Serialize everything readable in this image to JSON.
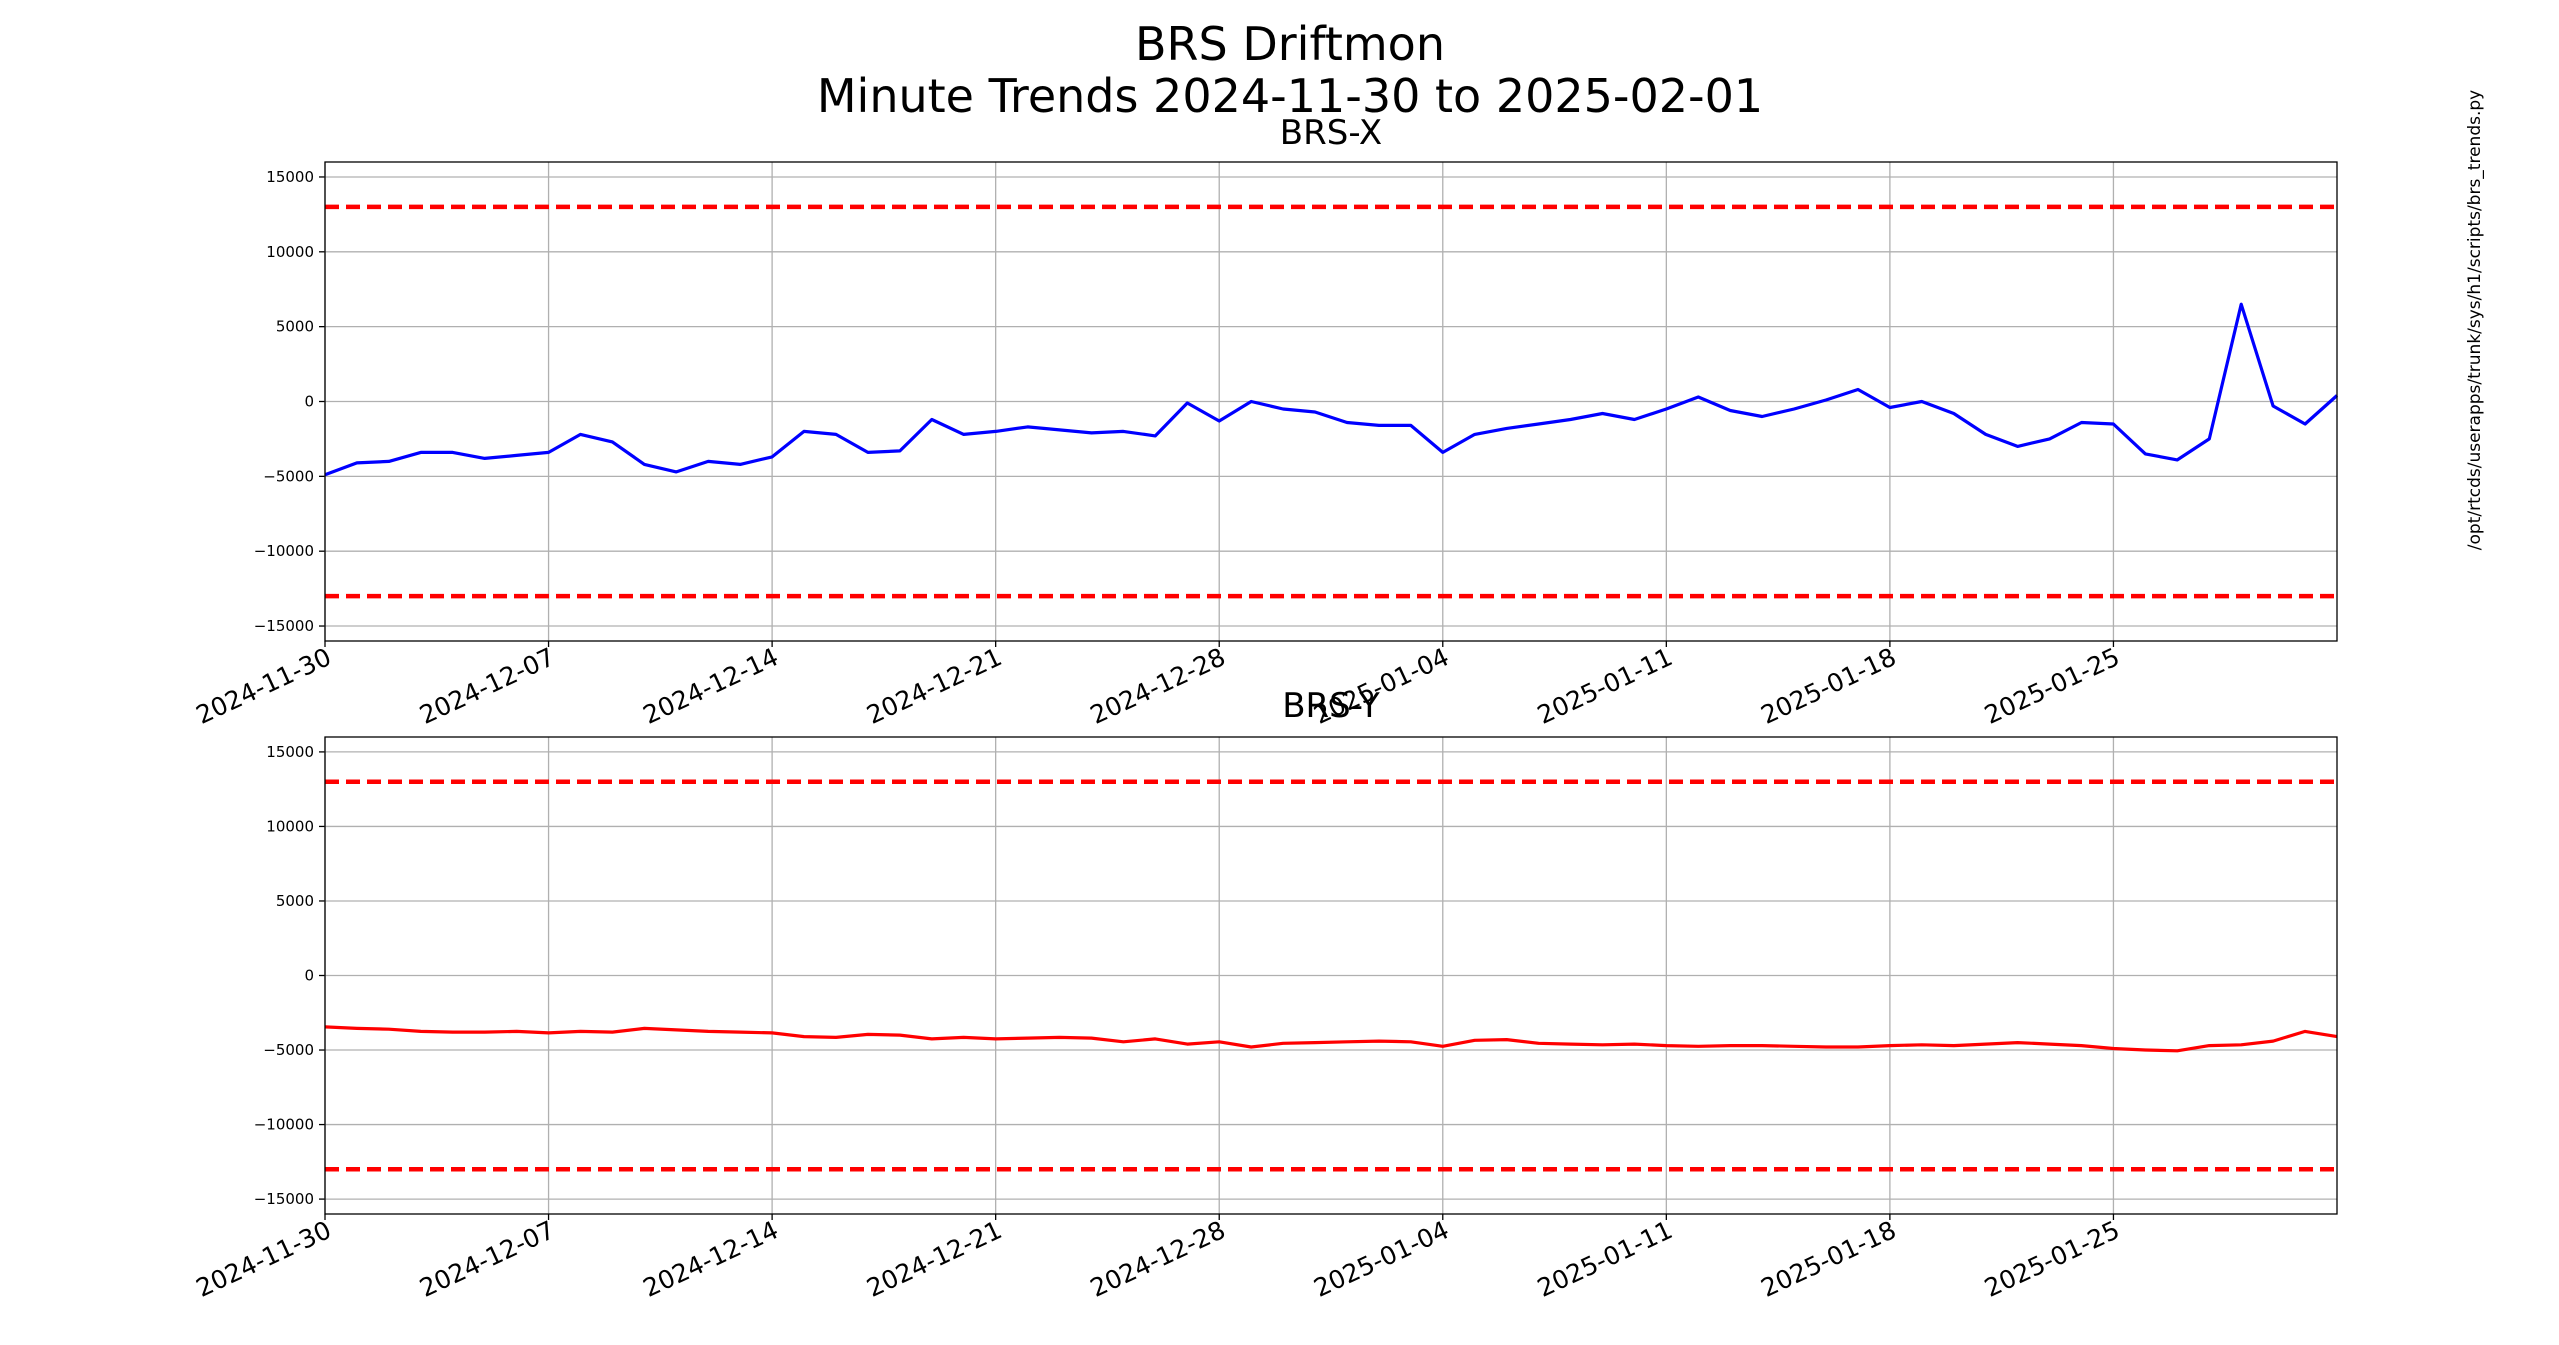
{
  "title": [
    "BRS Driftmon",
    "Minute Trends 2024-11-30  to 2025-02-01"
  ],
  "side_note": "/opt/rtcds/userapps/trunk/sys/h1/scripts/brs_trends.py",
  "chart_data": [
    {
      "type": "line",
      "title": "BRS-X",
      "x": [
        "2024-11-30",
        "2024-12-01",
        "2024-12-02",
        "2024-12-03",
        "2024-12-04",
        "2024-12-05",
        "2024-12-06",
        "2024-12-07",
        "2024-12-08",
        "2024-12-09",
        "2024-12-10",
        "2024-12-11",
        "2024-12-12",
        "2024-12-13",
        "2024-12-14",
        "2024-12-15",
        "2024-12-16",
        "2024-12-17",
        "2024-12-18",
        "2024-12-19",
        "2024-12-20",
        "2024-12-21",
        "2024-12-22",
        "2024-12-23",
        "2024-12-24",
        "2024-12-25",
        "2024-12-26",
        "2024-12-27",
        "2024-12-28",
        "2024-12-29",
        "2024-12-30",
        "2024-12-31",
        "2025-01-01",
        "2025-01-02",
        "2025-01-03",
        "2025-01-04",
        "2025-01-05",
        "2025-01-06",
        "2025-01-07",
        "2025-01-08",
        "2025-01-09",
        "2025-01-10",
        "2025-01-11",
        "2025-01-12",
        "2025-01-13",
        "2025-01-14",
        "2025-01-15",
        "2025-01-16",
        "2025-01-17",
        "2025-01-18",
        "2025-01-19",
        "2025-01-20",
        "2025-01-21",
        "2025-01-22",
        "2025-01-23",
        "2025-01-24",
        "2025-01-25",
        "2025-01-26",
        "2025-01-27",
        "2025-01-28",
        "2025-01-29",
        "2025-01-30",
        "2025-01-31",
        "2025-02-01"
      ],
      "series": [
        {
          "name": "BRS-X",
          "color": "#0000ff",
          "values": [
            -4900,
            -4100,
            -4000,
            -3400,
            -3400,
            -3800,
            -3600,
            -3400,
            -2200,
            -2700,
            -4200,
            -4700,
            -4000,
            -4200,
            -3700,
            -2000,
            -2200,
            -3400,
            -3300,
            -1200,
            -2200,
            -2000,
            -1700,
            -1900,
            -2100,
            -2000,
            -2300,
            -100,
            -1300,
            0,
            -500,
            -700,
            -1400,
            -1600,
            -1600,
            -3400,
            -2200,
            -1800,
            -1500,
            -1200,
            -800,
            -1200,
            -500,
            300,
            -600,
            -1000,
            -500,
            100,
            800,
            -400,
            0,
            -800,
            -2200,
            -3000,
            -2500,
            -1400,
            -1500,
            -3500,
            -3900,
            -2500,
            6500,
            -300,
            -1500,
            400
          ]
        }
      ],
      "hlines": [
        13000,
        -13000
      ],
      "hline_color": "#ff0000",
      "xlim": [
        "2024-11-30",
        "2025-02-01"
      ],
      "xticks": [
        "2024-11-30",
        "2024-12-07",
        "2024-12-14",
        "2024-12-21",
        "2024-12-28",
        "2025-01-04",
        "2025-01-11",
        "2025-01-18",
        "2025-01-25"
      ],
      "ylim": [
        -16000,
        16000
      ],
      "yticks": [
        {
          "value": -15000,
          "label": "−15000"
        },
        {
          "value": -10000,
          "label": "−10000"
        },
        {
          "value": -5000,
          "label": "−5000"
        },
        0,
        5000,
        10000,
        15000
      ],
      "grid": true
    },
    {
      "type": "line",
      "title": "BRS-Y",
      "x": [
        "2024-11-30",
        "2024-12-01",
        "2024-12-02",
        "2024-12-03",
        "2024-12-04",
        "2024-12-05",
        "2024-12-06",
        "2024-12-07",
        "2024-12-08",
        "2024-12-09",
        "2024-12-10",
        "2024-12-11",
        "2024-12-12",
        "2024-12-13",
        "2024-12-14",
        "2024-12-15",
        "2024-12-16",
        "2024-12-17",
        "2024-12-18",
        "2024-12-19",
        "2024-12-20",
        "2024-12-21",
        "2024-12-22",
        "2024-12-23",
        "2024-12-24",
        "2024-12-25",
        "2024-12-26",
        "2024-12-27",
        "2024-12-28",
        "2024-12-29",
        "2024-12-30",
        "2024-12-31",
        "2025-01-01",
        "2025-01-02",
        "2025-01-03",
        "2025-01-04",
        "2025-01-05",
        "2025-01-06",
        "2025-01-07",
        "2025-01-08",
        "2025-01-09",
        "2025-01-10",
        "2025-01-11",
        "2025-01-12",
        "2025-01-13",
        "2025-01-14",
        "2025-01-15",
        "2025-01-16",
        "2025-01-17",
        "2025-01-18",
        "2025-01-19",
        "2025-01-20",
        "2025-01-21",
        "2025-01-22",
        "2025-01-23",
        "2025-01-24",
        "2025-01-25",
        "2025-01-26",
        "2025-01-27",
        "2025-01-28",
        "2025-01-29",
        "2025-01-30",
        "2025-01-31",
        "2025-02-01"
      ],
      "series": [
        {
          "name": "BRS-Y",
          "color": "#ff0000",
          "values": [
            -3450,
            -3550,
            -3600,
            -3750,
            -3800,
            -3800,
            -3750,
            -3850,
            -3750,
            -3800,
            -3550,
            -3650,
            -3750,
            -3800,
            -3850,
            -4100,
            -4150,
            -3950,
            -4000,
            -4250,
            -4150,
            -4250,
            -4200,
            -4150,
            -4200,
            -4450,
            -4250,
            -4600,
            -4450,
            -4800,
            -4550,
            -4500,
            -4450,
            -4400,
            -4450,
            -4750,
            -4350,
            -4300,
            -4550,
            -4600,
            -4650,
            -4600,
            -4700,
            -4750,
            -4700,
            -4700,
            -4750,
            -4800,
            -4800,
            -4700,
            -4650,
            -4700,
            -4600,
            -4500,
            -4600,
            -4700,
            -4900,
            -5000,
            -5050,
            -4700,
            -4650,
            -4400,
            -3750,
            -4100
          ]
        }
      ],
      "hlines": [
        13000,
        -13000
      ],
      "hline_color": "#ff0000",
      "xlim": [
        "2024-11-30",
        "2025-02-01"
      ],
      "xticks": [
        "2024-11-30",
        "2024-12-07",
        "2024-12-14",
        "2024-12-21",
        "2024-12-28",
        "2025-01-04",
        "2025-01-11",
        "2025-01-18",
        "2025-01-25"
      ],
      "ylim": [
        -16000,
        16000
      ],
      "yticks": [
        {
          "value": -15000,
          "label": "−15000"
        },
        {
          "value": -10000,
          "label": "−10000"
        },
        {
          "value": -5000,
          "label": "−5000"
        },
        0,
        5000,
        10000,
        15000
      ],
      "grid": true
    }
  ]
}
